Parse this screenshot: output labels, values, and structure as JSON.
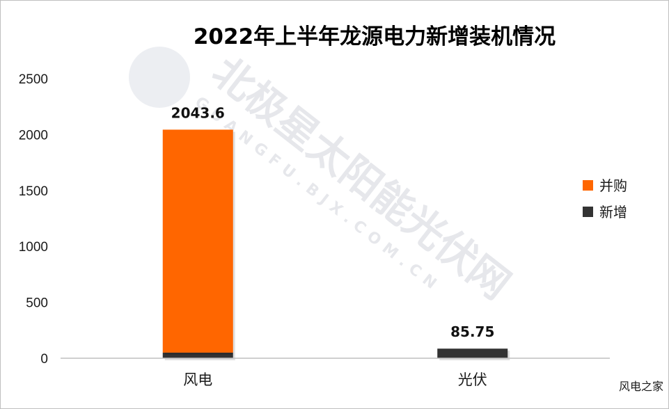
{
  "chart_data": {
    "type": "bar",
    "stacked": true,
    "title": "2022年上半年龙源电力新增装机情况",
    "categories": [
      "风电",
      "光伏"
    ],
    "series": [
      {
        "name": "新增",
        "color": "#333333",
        "values": [
          50,
          85.75
        ]
      },
      {
        "name": "并购",
        "color": "#ff6600",
        "values": [
          1993.6,
          0
        ]
      }
    ],
    "data_labels": [
      "2043.6",
      "85.75"
    ],
    "ylim": [
      0,
      2500
    ],
    "yticks": [
      "0",
      "500",
      "1000",
      "1500",
      "2000",
      "2500"
    ],
    "grid": false,
    "legend_position": "right"
  },
  "source": "风电之家",
  "watermark": {
    "main": "北极星太阳能光伏网",
    "sub": "GUANGFU.BJX.COM.CN"
  }
}
